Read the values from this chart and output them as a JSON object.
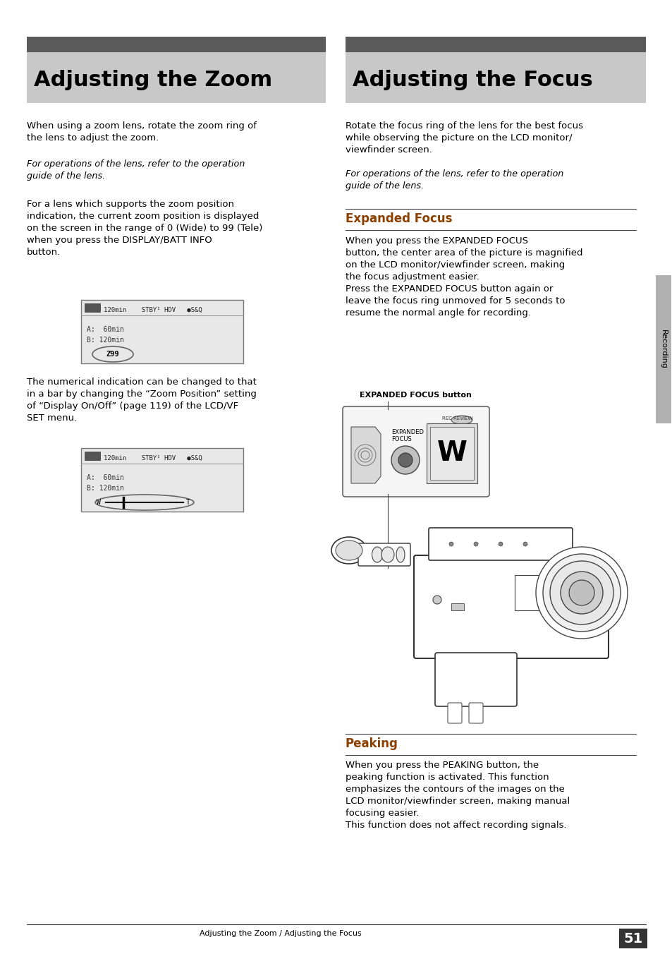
{
  "page_bg": "#ffffff",
  "header_dark": "#5a5a5a",
  "header_light": "#c8c8c8",
  "sidebar_bg": "#b0b0b0",
  "text_color": "#000000",
  "section_color": "#8B4000",
  "footer_line_color": "#333333",
  "left_title": "Adjusting the Zoom",
  "right_title": "Adjusting the Focus",
  "footer_text": "Adjusting the Zoom / Adjusting the Focus",
  "footer_page": "51",
  "sidebar_label": "Recording",
  "display_bg": "#e0e0e0",
  "display_border": "#888888"
}
